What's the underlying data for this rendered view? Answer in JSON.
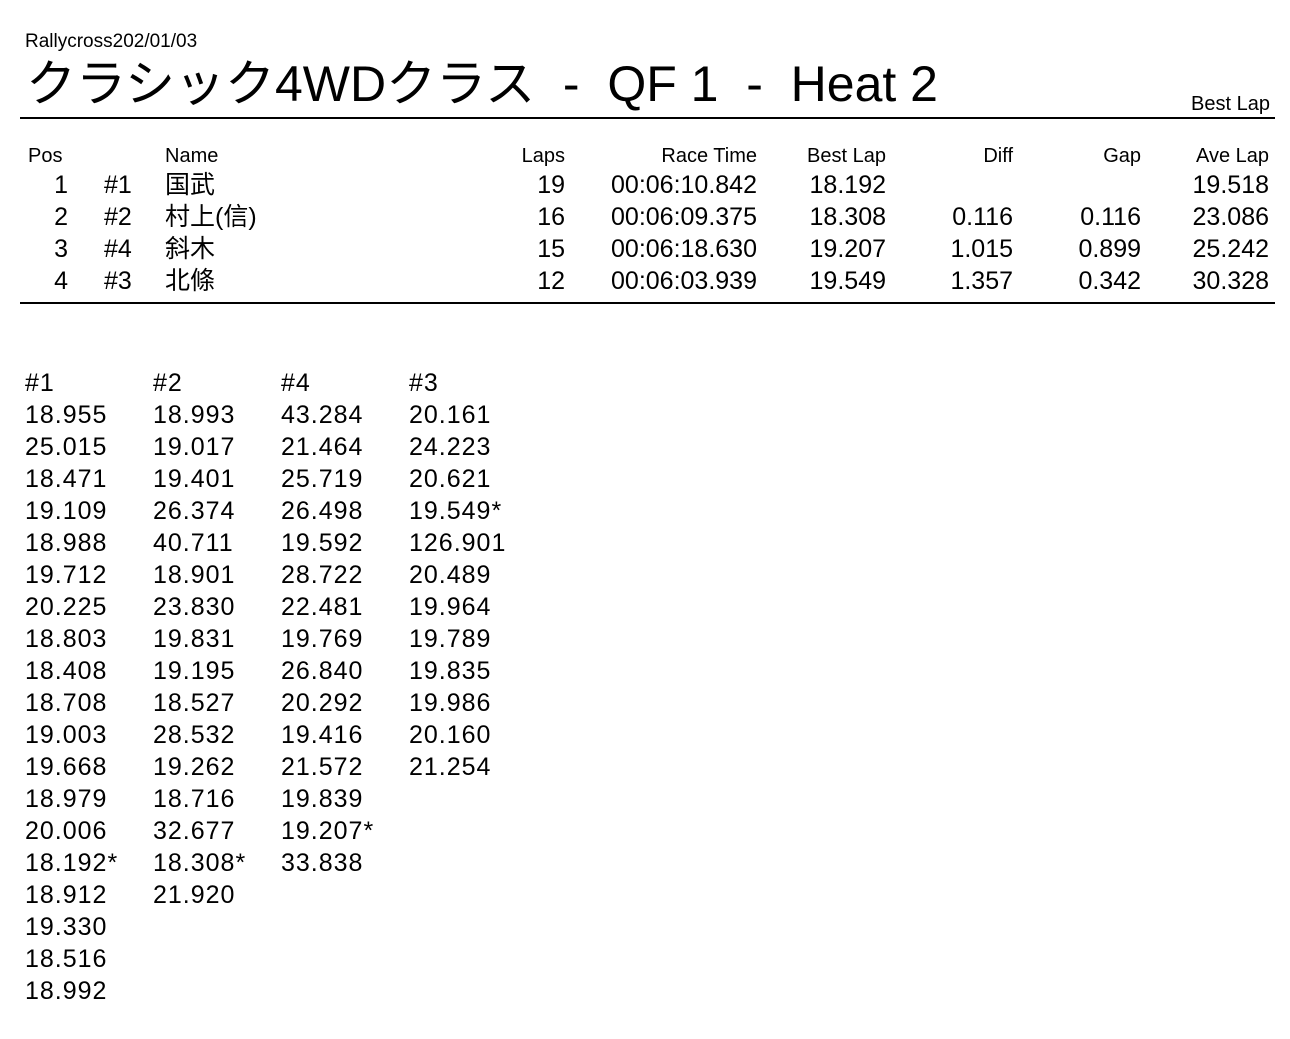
{
  "header": {
    "subtitle": "Rallycross202/01/03",
    "title": "クラシック4WDクラス  -  QF 1  -  Heat 2",
    "corner_label": "Best Lap"
  },
  "results": {
    "columns": [
      "Pos",
      "",
      "Name",
      "Laps",
      "Race Time",
      "Best Lap",
      "Diff",
      "Gap",
      "Ave Lap"
    ],
    "rows": [
      [
        "1",
        "#1",
        "国武",
        "19",
        "00:06:10.842",
        "18.192",
        "",
        "",
        "19.518"
      ],
      [
        "2",
        "#2",
        "村上(信)",
        "16",
        "00:06:09.375",
        "18.308",
        "0.116",
        "0.116",
        "23.086"
      ],
      [
        "3",
        "#4",
        "斜木",
        "15",
        "00:06:18.630",
        "19.207",
        "1.015",
        "0.899",
        "25.242"
      ],
      [
        "4",
        "#3",
        "北條",
        "12",
        "00:06:03.939",
        "19.549",
        "1.357",
        "0.342",
        "30.328"
      ]
    ]
  },
  "laps": [
    {
      "car": "#1",
      "times": [
        "18.955",
        "25.015",
        "18.471",
        "19.109",
        "18.988",
        "19.712",
        "20.225",
        "18.803",
        "18.408",
        "18.708",
        "19.003",
        "19.668",
        "18.979",
        "20.006",
        "18.192*",
        "18.912",
        "19.330",
        "18.516",
        "18.992"
      ]
    },
    {
      "car": "#2",
      "times": [
        "18.993",
        "19.017",
        "19.401",
        "26.374",
        "40.711",
        "18.901",
        "23.830",
        "19.831",
        "19.195",
        "18.527",
        "28.532",
        "19.262",
        "18.716",
        "32.677",
        "18.308*",
        "21.920"
      ]
    },
    {
      "car": "#4",
      "times": [
        "43.284",
        "21.464",
        "25.719",
        "26.498",
        "19.592",
        "28.722",
        "22.481",
        "19.769",
        "26.840",
        "20.292",
        "19.416",
        "21.572",
        "19.839",
        "19.207*",
        "33.838"
      ]
    },
    {
      "car": "#3",
      "times": [
        "20.161",
        "24.223",
        "20.621",
        "19.549*",
        "126.901",
        "20.489",
        "19.964",
        "19.789",
        "19.835",
        "19.986",
        "20.160",
        "21.254"
      ]
    }
  ]
}
